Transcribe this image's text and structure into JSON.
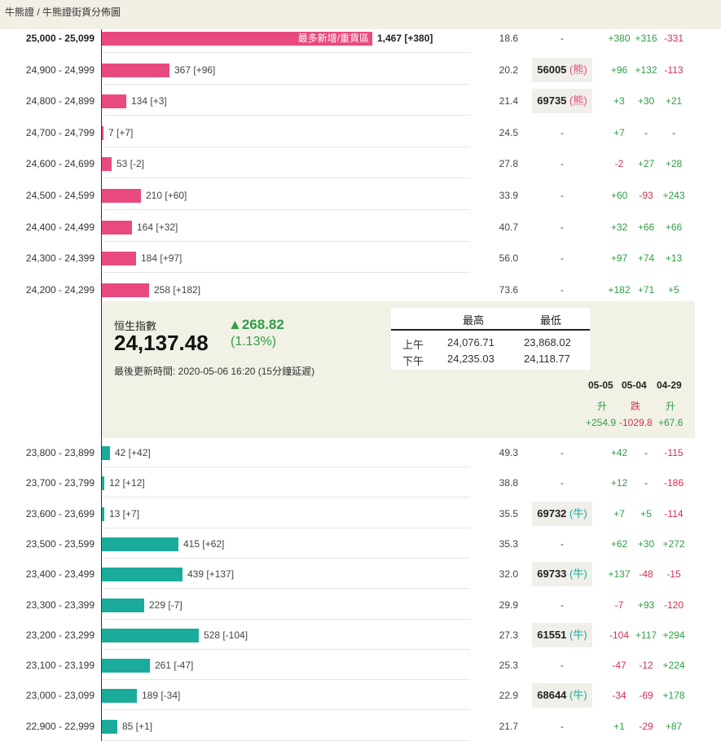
{
  "breadcrumb": [
    "牛熊證",
    "牛熊證街貨分佈圖"
  ],
  "breadcrumb_sep": "/",
  "bear_rows": [
    {
      "range": "25,000 - 25,099",
      "bold": true,
      "value": 1467,
      "label": "1,467 [+380]",
      "inbar": "最多新增/重貨區",
      "pct": "18.6",
      "code": "-",
      "c1": "+380",
      "c2": "+316",
      "c3": "-331"
    },
    {
      "range": "24,900 - 24,999",
      "value": 367,
      "label": "367 [+96]",
      "pct": "20.2",
      "code": "56005",
      "tag": "熊",
      "c1": "+96",
      "c2": "+132",
      "c3": "-113"
    },
    {
      "range": "24,800 - 24,899",
      "value": 134,
      "label": "134 [+3]",
      "pct": "21.4",
      "code": "69735",
      "tag": "熊",
      "c1": "+3",
      "c2": "+30",
      "c3": "+21"
    },
    {
      "range": "24,700 - 24,799",
      "value": 7,
      "label": "7 [+7]",
      "pct": "24.5",
      "code": "-",
      "c1": "+7",
      "c2": "-",
      "c3": "-"
    },
    {
      "range": "24,600 - 24,699",
      "value": 53,
      "label": "53 [-2]",
      "pct": "27.8",
      "code": "-",
      "c1": "-2",
      "c2": "+27",
      "c3": "+28"
    },
    {
      "range": "24,500 - 24,599",
      "value": 210,
      "label": "210 [+60]",
      "pct": "33.9",
      "code": "-",
      "c1": "+60",
      "c2": "-93",
      "c3": "+243"
    },
    {
      "range": "24,400 - 24,499",
      "value": 164,
      "label": "164 [+32]",
      "pct": "40.7",
      "code": "-",
      "c1": "+32",
      "c2": "+66",
      "c3": "+66"
    },
    {
      "range": "24,300 - 24,399",
      "value": 184,
      "label": "184 [+97]",
      "pct": "56.0",
      "code": "-",
      "c1": "+97",
      "c2": "+74",
      "c3": "+13"
    },
    {
      "range": "24,200 - 24,299",
      "value": 258,
      "label": "258 [+182]",
      "pct": "73.6",
      "code": "-",
      "c1": "+182",
      "c2": "+71",
      "c3": "+5"
    }
  ],
  "bull_rows": [
    {
      "range": "23,800 - 23,899",
      "value": 42,
      "label": "42 [+42]",
      "pct": "49.3",
      "code": "-",
      "c1": "+42",
      "c2": "-",
      "c3": "-115"
    },
    {
      "range": "23,700 - 23,799",
      "value": 12,
      "label": "12 [+12]",
      "pct": "38.8",
      "code": "-",
      "c1": "+12",
      "c2": "-",
      "c3": "-186"
    },
    {
      "range": "23,600 - 23,699",
      "value": 13,
      "label": "13 [+7]",
      "pct": "35.5",
      "code": "69732",
      "tag": "牛",
      "c1": "+7",
      "c2": "+5",
      "c3": "-114"
    },
    {
      "range": "23,500 - 23,599",
      "value": 415,
      "label": "415 [+62]",
      "pct": "35.3",
      "code": "-",
      "c1": "+62",
      "c2": "+30",
      "c3": "+272"
    },
    {
      "range": "23,400 - 23,499",
      "value": 439,
      "label": "439 [+137]",
      "pct": "32.0",
      "code": "69733",
      "tag": "牛",
      "c1": "+137",
      "c2": "-48",
      "c3": "-15"
    },
    {
      "range": "23,300 - 23,399",
      "value": 229,
      "label": "229 [-7]",
      "pct": "29.9",
      "code": "-",
      "c1": "-7",
      "c2": "+93",
      "c3": "-120"
    },
    {
      "range": "23,200 - 23,299",
      "value": 528,
      "label": "528 [-104]",
      "pct": "27.3",
      "code": "61551",
      "tag": "牛",
      "c1": "-104",
      "c2": "+117",
      "c3": "+294"
    },
    {
      "range": "23,100 - 23,199",
      "value": 261,
      "label": "261 [-47]",
      "pct": "25.3",
      "code": "-",
      "c1": "-47",
      "c2": "-12",
      "c3": "+224"
    },
    {
      "range": "23,000 - 23,099",
      "value": 189,
      "label": "189 [-34]",
      "pct": "22.9",
      "code": "68644",
      "tag": "牛",
      "c1": "-34",
      "c2": "-69",
      "c3": "+178"
    },
    {
      "range": "22,900 - 22,999",
      "value": 85,
      "label": "85 [+1]",
      "pct": "21.7",
      "code": "-",
      "c1": "+1",
      "c2": "-29",
      "c3": "+87"
    }
  ],
  "hsi": {
    "name": "恒生指數",
    "value": "24,137.48",
    "change": "▲268.82",
    "change_pct": "(1.13%)",
    "updated": "最後更新時間: 2020-05-06 16:20 (15分鐘延遲)",
    "high_label": "最高",
    "low_label": "最低",
    "am_label": "上午",
    "pm_label": "下午",
    "am_high": "24,076.71",
    "am_low": "23,868.02",
    "pm_high": "24,235.03",
    "pm_low": "24,118.77",
    "days": [
      {
        "date": "05-05",
        "dir": "升",
        "chg": "+254.9",
        "up": true
      },
      {
        "date": "05-04",
        "dir": "跌",
        "chg": "-1029.8",
        "up": false
      },
      {
        "date": "04-29",
        "dir": "升",
        "chg": "+67.6",
        "up": true
      }
    ]
  },
  "colors": {
    "bear": "#e84a80",
    "bull": "#1aab9b",
    "up": "#2e9e45",
    "down": "#d4304f",
    "panel": "#f2f1e6"
  }
}
